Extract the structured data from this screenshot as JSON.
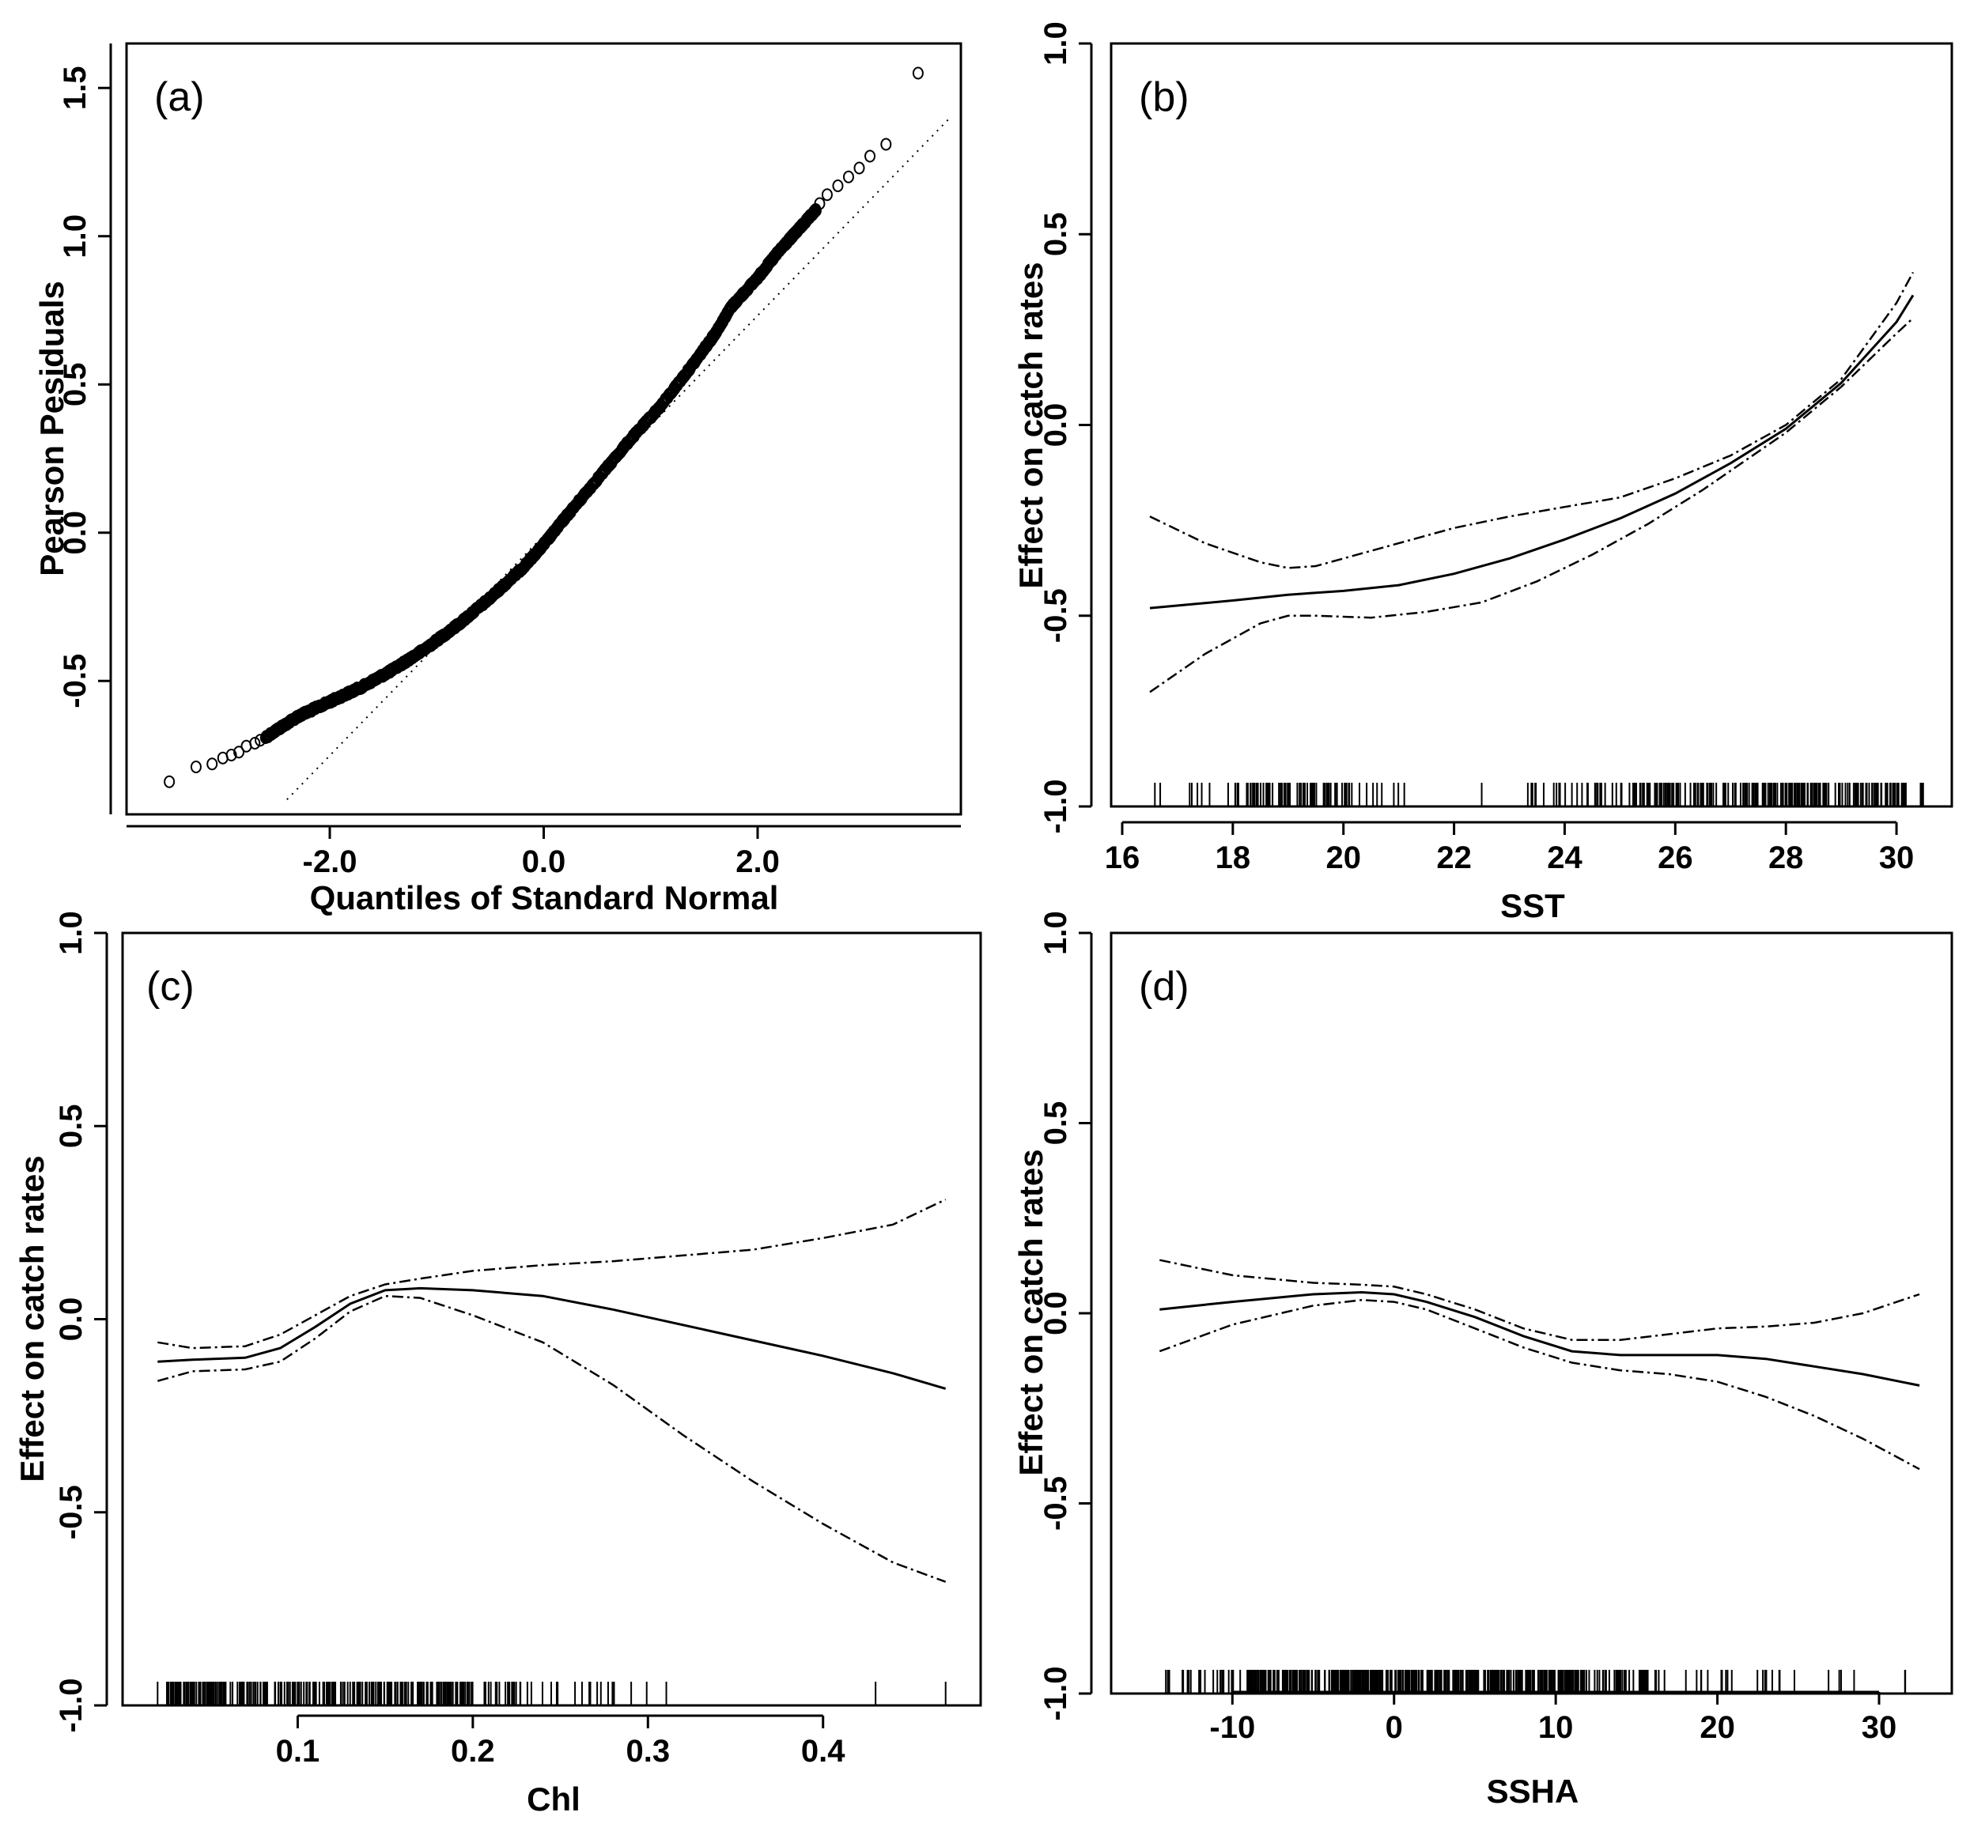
{
  "chart_data": [
    {
      "id": "a",
      "type": "scatter",
      "panel_label": "(a)",
      "xlabel": "Quantiles of Standard Normal",
      "ylabel": "Pearson Pesiduals",
      "xlim": [
        -3.9,
        3.9
      ],
      "ylim": [
        -0.95,
        1.65
      ],
      "xticks": [
        -2.0,
        0.0,
        2.0
      ],
      "xtick_labels": [
        "-2.0",
        "0.0",
        "2.0"
      ],
      "yticks": [
        -0.5,
        0.0,
        0.5,
        1.0,
        1.5
      ],
      "ytick_labels": [
        "-0.5",
        "0.0",
        "0.5",
        "1.0",
        "1.5"
      ],
      "reference_line": {
        "x": [
          -2.4,
          3.8
        ],
        "y": [
          -0.9,
          1.4
        ]
      },
      "outer_points": {
        "x": [
          -3.5,
          -3.25,
          -3.1,
          -3.0,
          -2.92,
          -2.85,
          -2.78,
          -2.7,
          -2.65,
          2.58,
          2.65,
          2.75,
          2.85,
          2.95,
          3.05,
          3.2,
          3.5
        ],
        "y": [
          -0.84,
          -0.79,
          -0.78,
          -0.76,
          -0.75,
          -0.74,
          -0.72,
          -0.71,
          -0.7,
          1.11,
          1.14,
          1.17,
          1.2,
          1.23,
          1.27,
          1.31,
          1.55
        ]
      },
      "dense_curve": {
        "x": [
          -2.6,
          -2.3,
          -2.0,
          -1.7,
          -1.4,
          -1.1,
          -0.8,
          -0.5,
          -0.2,
          0.0,
          0.2,
          0.5,
          0.8,
          1.1,
          1.4,
          1.6,
          1.75,
          2.0,
          2.2,
          2.4,
          2.55
        ],
        "y": [
          -0.69,
          -0.62,
          -0.57,
          -0.52,
          -0.46,
          -0.39,
          -0.31,
          -0.22,
          -0.12,
          -0.04,
          0.05,
          0.18,
          0.31,
          0.43,
          0.57,
          0.67,
          0.76,
          0.86,
          0.95,
          1.03,
          1.09
        ]
      }
    },
    {
      "id": "b",
      "type": "line",
      "panel_label": "(b)",
      "xlabel": "SST",
      "ylabel": "Effect on catch rates",
      "xlim": [
        15.8,
        31.0
      ],
      "ylim": [
        -1.0,
        1.0
      ],
      "xticks": [
        16,
        18,
        20,
        22,
        24,
        26,
        28,
        30
      ],
      "xtick_labels": [
        "16",
        "18",
        "20",
        "22",
        "24",
        "26",
        "28",
        "30"
      ],
      "yticks": [
        -1.0,
        -0.5,
        0.0,
        0.5,
        1.0
      ],
      "ytick_labels": [
        "-1.0",
        "-0.5",
        "0.0",
        "0.5",
        "1.0"
      ],
      "series": [
        {
          "name": "fit",
          "x": [
            16.5,
            18,
            19,
            20,
            21,
            22,
            23,
            24,
            25,
            26,
            27,
            28,
            29,
            30,
            30.3
          ],
          "y": [
            -0.48,
            -0.46,
            -0.445,
            -0.435,
            -0.42,
            -0.39,
            -0.35,
            -0.3,
            -0.245,
            -0.18,
            -0.1,
            -0.01,
            0.11,
            0.27,
            0.34
          ]
        },
        {
          "name": "upper",
          "x": [
            16.5,
            17.5,
            18.5,
            19,
            19.5,
            20.5,
            22,
            23,
            24,
            25,
            26,
            27,
            28,
            29,
            30,
            30.3
          ],
          "y": [
            -0.24,
            -0.31,
            -0.36,
            -0.375,
            -0.37,
            -0.33,
            -0.27,
            -0.24,
            -0.215,
            -0.19,
            -0.14,
            -0.08,
            0.0,
            0.12,
            0.32,
            0.4
          ]
        },
        {
          "name": "lower",
          "x": [
            16.5,
            17.5,
            18.5,
            19,
            19.5,
            20.5,
            21.5,
            22.5,
            23.5,
            24.5,
            25.5,
            26.5,
            27.5,
            28,
            29,
            30,
            30.3
          ],
          "y": [
            -0.7,
            -0.6,
            -0.52,
            -0.5,
            -0.5,
            -0.505,
            -0.49,
            -0.465,
            -0.41,
            -0.34,
            -0.26,
            -0.17,
            -0.07,
            -0.02,
            0.1,
            0.24,
            0.28
          ]
        }
      ]
    },
    {
      "id": "c",
      "type": "line",
      "panel_label": "(c)",
      "xlabel": "Chl",
      "ylabel": "Effect on catch rates",
      "xlim": [
        0.0,
        0.49
      ],
      "ylim": [
        -1.0,
        1.0
      ],
      "xticks": [
        0.1,
        0.2,
        0.3,
        0.4
      ],
      "xtick_labels": [
        "0.1",
        "0.2",
        "0.3",
        "0.4"
      ],
      "yticks": [
        -1.0,
        -0.5,
        0.0,
        0.5,
        1.0
      ],
      "ytick_labels": [
        "-1.0",
        "-0.5",
        "0.0",
        "0.5",
        "1.0"
      ],
      "series": [
        {
          "name": "fit",
          "x": [
            0.02,
            0.04,
            0.07,
            0.09,
            0.11,
            0.13,
            0.15,
            0.17,
            0.2,
            0.24,
            0.28,
            0.32,
            0.36,
            0.4,
            0.44,
            0.47
          ],
          "y": [
            -0.11,
            -0.105,
            -0.1,
            -0.075,
            -0.02,
            0.04,
            0.075,
            0.08,
            0.075,
            0.06,
            0.025,
            -0.015,
            -0.055,
            -0.095,
            -0.14,
            -0.18
          ]
        },
        {
          "name": "upper",
          "x": [
            0.02,
            0.04,
            0.07,
            0.09,
            0.11,
            0.13,
            0.15,
            0.17,
            0.2,
            0.24,
            0.28,
            0.32,
            0.36,
            0.4,
            0.44,
            0.47
          ],
          "y": [
            -0.06,
            -0.075,
            -0.07,
            -0.04,
            0.01,
            0.06,
            0.09,
            0.105,
            0.125,
            0.14,
            0.15,
            0.165,
            0.18,
            0.21,
            0.245,
            0.31
          ]
        },
        {
          "name": "lower",
          "x": [
            0.02,
            0.04,
            0.07,
            0.09,
            0.11,
            0.13,
            0.15,
            0.17,
            0.2,
            0.24,
            0.28,
            0.32,
            0.36,
            0.4,
            0.44,
            0.47
          ],
          "y": [
            -0.16,
            -0.135,
            -0.13,
            -0.11,
            -0.05,
            0.02,
            0.06,
            0.055,
            0.01,
            -0.06,
            -0.17,
            -0.3,
            -0.42,
            -0.53,
            -0.63,
            -0.68
          ]
        }
      ]
    },
    {
      "id": "d",
      "type": "line",
      "panel_label": "(d)",
      "xlabel": "SSHA",
      "ylabel": "Effect on catch rates",
      "xlim": [
        -17.5,
        34.5
      ],
      "ylim": [
        -1.0,
        1.0
      ],
      "xticks": [
        -10,
        0,
        10,
        20,
        30
      ],
      "xtick_labels": [
        "-10",
        "0",
        "10",
        "20",
        "30"
      ],
      "yticks": [
        -1.0,
        -0.5,
        0.0,
        0.5,
        1.0
      ],
      "ytick_labels": [
        "-1.0",
        "-0.5",
        "0.0",
        "0.5",
        "1.0"
      ],
      "series": [
        {
          "name": "fit",
          "x": [
            -14.5,
            -10,
            -5,
            -2,
            0,
            2,
            5,
            8,
            11,
            14,
            17,
            20,
            23,
            26,
            29,
            32.5
          ],
          "y": [
            0.01,
            0.03,
            0.05,
            0.055,
            0.05,
            0.03,
            -0.01,
            -0.06,
            -0.1,
            -0.11,
            -0.11,
            -0.11,
            -0.12,
            -0.14,
            -0.16,
            -0.19
          ]
        },
        {
          "name": "upper",
          "x": [
            -14.5,
            -10,
            -5,
            -2,
            0,
            2,
            5,
            8,
            11,
            14,
            17,
            20,
            23,
            26,
            29,
            32.5
          ],
          "y": [
            0.14,
            0.1,
            0.08,
            0.075,
            0.07,
            0.05,
            0.01,
            -0.04,
            -0.07,
            -0.07,
            -0.055,
            -0.04,
            -0.035,
            -0.025,
            0.0,
            0.05
          ]
        },
        {
          "name": "lower",
          "x": [
            -14.5,
            -10,
            -5,
            -2,
            0,
            2,
            5,
            8,
            11,
            14,
            17,
            20,
            23,
            26,
            29,
            32.5
          ],
          "y": [
            -0.1,
            -0.03,
            0.02,
            0.035,
            0.03,
            0.01,
            -0.04,
            -0.09,
            -0.13,
            -0.15,
            -0.16,
            -0.18,
            -0.22,
            -0.27,
            -0.33,
            -0.41
          ]
        }
      ]
    }
  ]
}
